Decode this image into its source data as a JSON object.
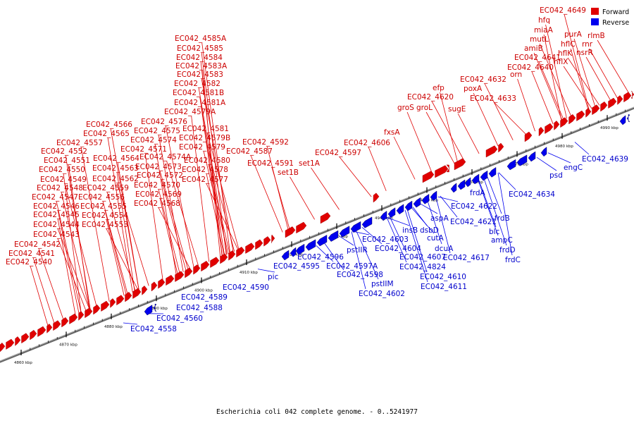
{
  "caption": "Escherichia coli 042 complete genome. - 0..5241977",
  "legend": [
    {
      "label": "Forward",
      "color": "#e00000"
    },
    {
      "label": "Reverse",
      "color": "#0000ee"
    }
  ],
  "colors": {
    "forward": "#e00000",
    "reverse": "#0000ee",
    "forward_label": "#cc0000",
    "reverse_label": "#0000cc"
  },
  "axis_ticks": [
    "4860 kbp",
    "4870 kbp",
    "4880 kbp",
    "4890 kbp",
    "4900 kbp",
    "4910 kbp",
    "4920 kbp",
    "4930 kbp",
    "4940 kbp",
    "4950 kbp",
    "4960 kbp",
    "4970 kbp",
    "4980 kbp",
    "4990 kbp"
  ],
  "forward_labels": [
    "EC042_4540",
    "EC042_4541",
    "EC042_4542",
    "EC042_4543",
    "EC042_4544",
    "EC042_4545",
    "EC042_4546",
    "EC042_4547",
    "EC042_4548",
    "EC042_4549",
    "EC042_4550",
    "EC042_4551",
    "EC042_4552",
    "EC042_4557",
    "EC042_4553",
    "EC042_4554",
    "EC042_4555",
    "EC042_4556",
    "EC042_4559",
    "EC042_4562",
    "EC042_4563",
    "EC042_4564",
    "EC042_4565",
    "EC042_4566",
    "EC042_4568",
    "EC042_4569",
    "EC042_4570",
    "EC042_4572",
    "EC042_4573",
    "EC042_4574A",
    "EC042_4571",
    "EC042_4574",
    "EC042_4575",
    "EC042_4576",
    "EC042_4577",
    "EC042_4578",
    "EC042_4580",
    "EC042_4579",
    "EC042_4579B",
    "EC042_4581",
    "EC042_4579A",
    "EC042_4581A",
    "EC042_4581B",
    "EC042_4582",
    "EC042_4583",
    "EC042_4583A",
    "EC042_4584",
    "EC042_4585",
    "EC042_4585A",
    "EC042_4587",
    "EC042_4591",
    "EC042_4592",
    "set1B",
    "set1A",
    "EC042_4597",
    "EC042_4606",
    "fxsA",
    "groS",
    "groL",
    "EC042_4620",
    "efp",
    "sugE",
    "poxA",
    "EC042_4632",
    "EC042_4633",
    "orn",
    "EC042_4640",
    "EC042_4641",
    "amiB",
    "mutL",
    "miaA",
    "hfq",
    "EC042_4649",
    "hflX",
    "hflK",
    "hflC",
    "purA",
    "nsrR",
    "rnr",
    "rlmB"
  ],
  "reverse_labels": [
    "EC042_4558",
    "EC042_4560",
    "EC042_4588",
    "EC042_4589",
    "EC042_4590",
    "pic",
    "EC042_4595",
    "EC042_4596",
    "pstIIR",
    "EC042_4597A",
    "EC042_4598",
    "pstIIM",
    "EC042_4602",
    "EC042_4603",
    "EC042_4604",
    "insB",
    "dsbD",
    "EC042_4607",
    "EC042_4824",
    "cutA",
    "dcuA",
    "aspA",
    "EC042_4610",
    "EC042_4611",
    "EC042_4617",
    "EC042_4621",
    "EC042_4622",
    "frdA",
    "frdB",
    "blc",
    "ampC",
    "frdD",
    "frdC",
    "EC042_4634",
    "psd",
    "engC",
    "EC042_4639"
  ]
}
